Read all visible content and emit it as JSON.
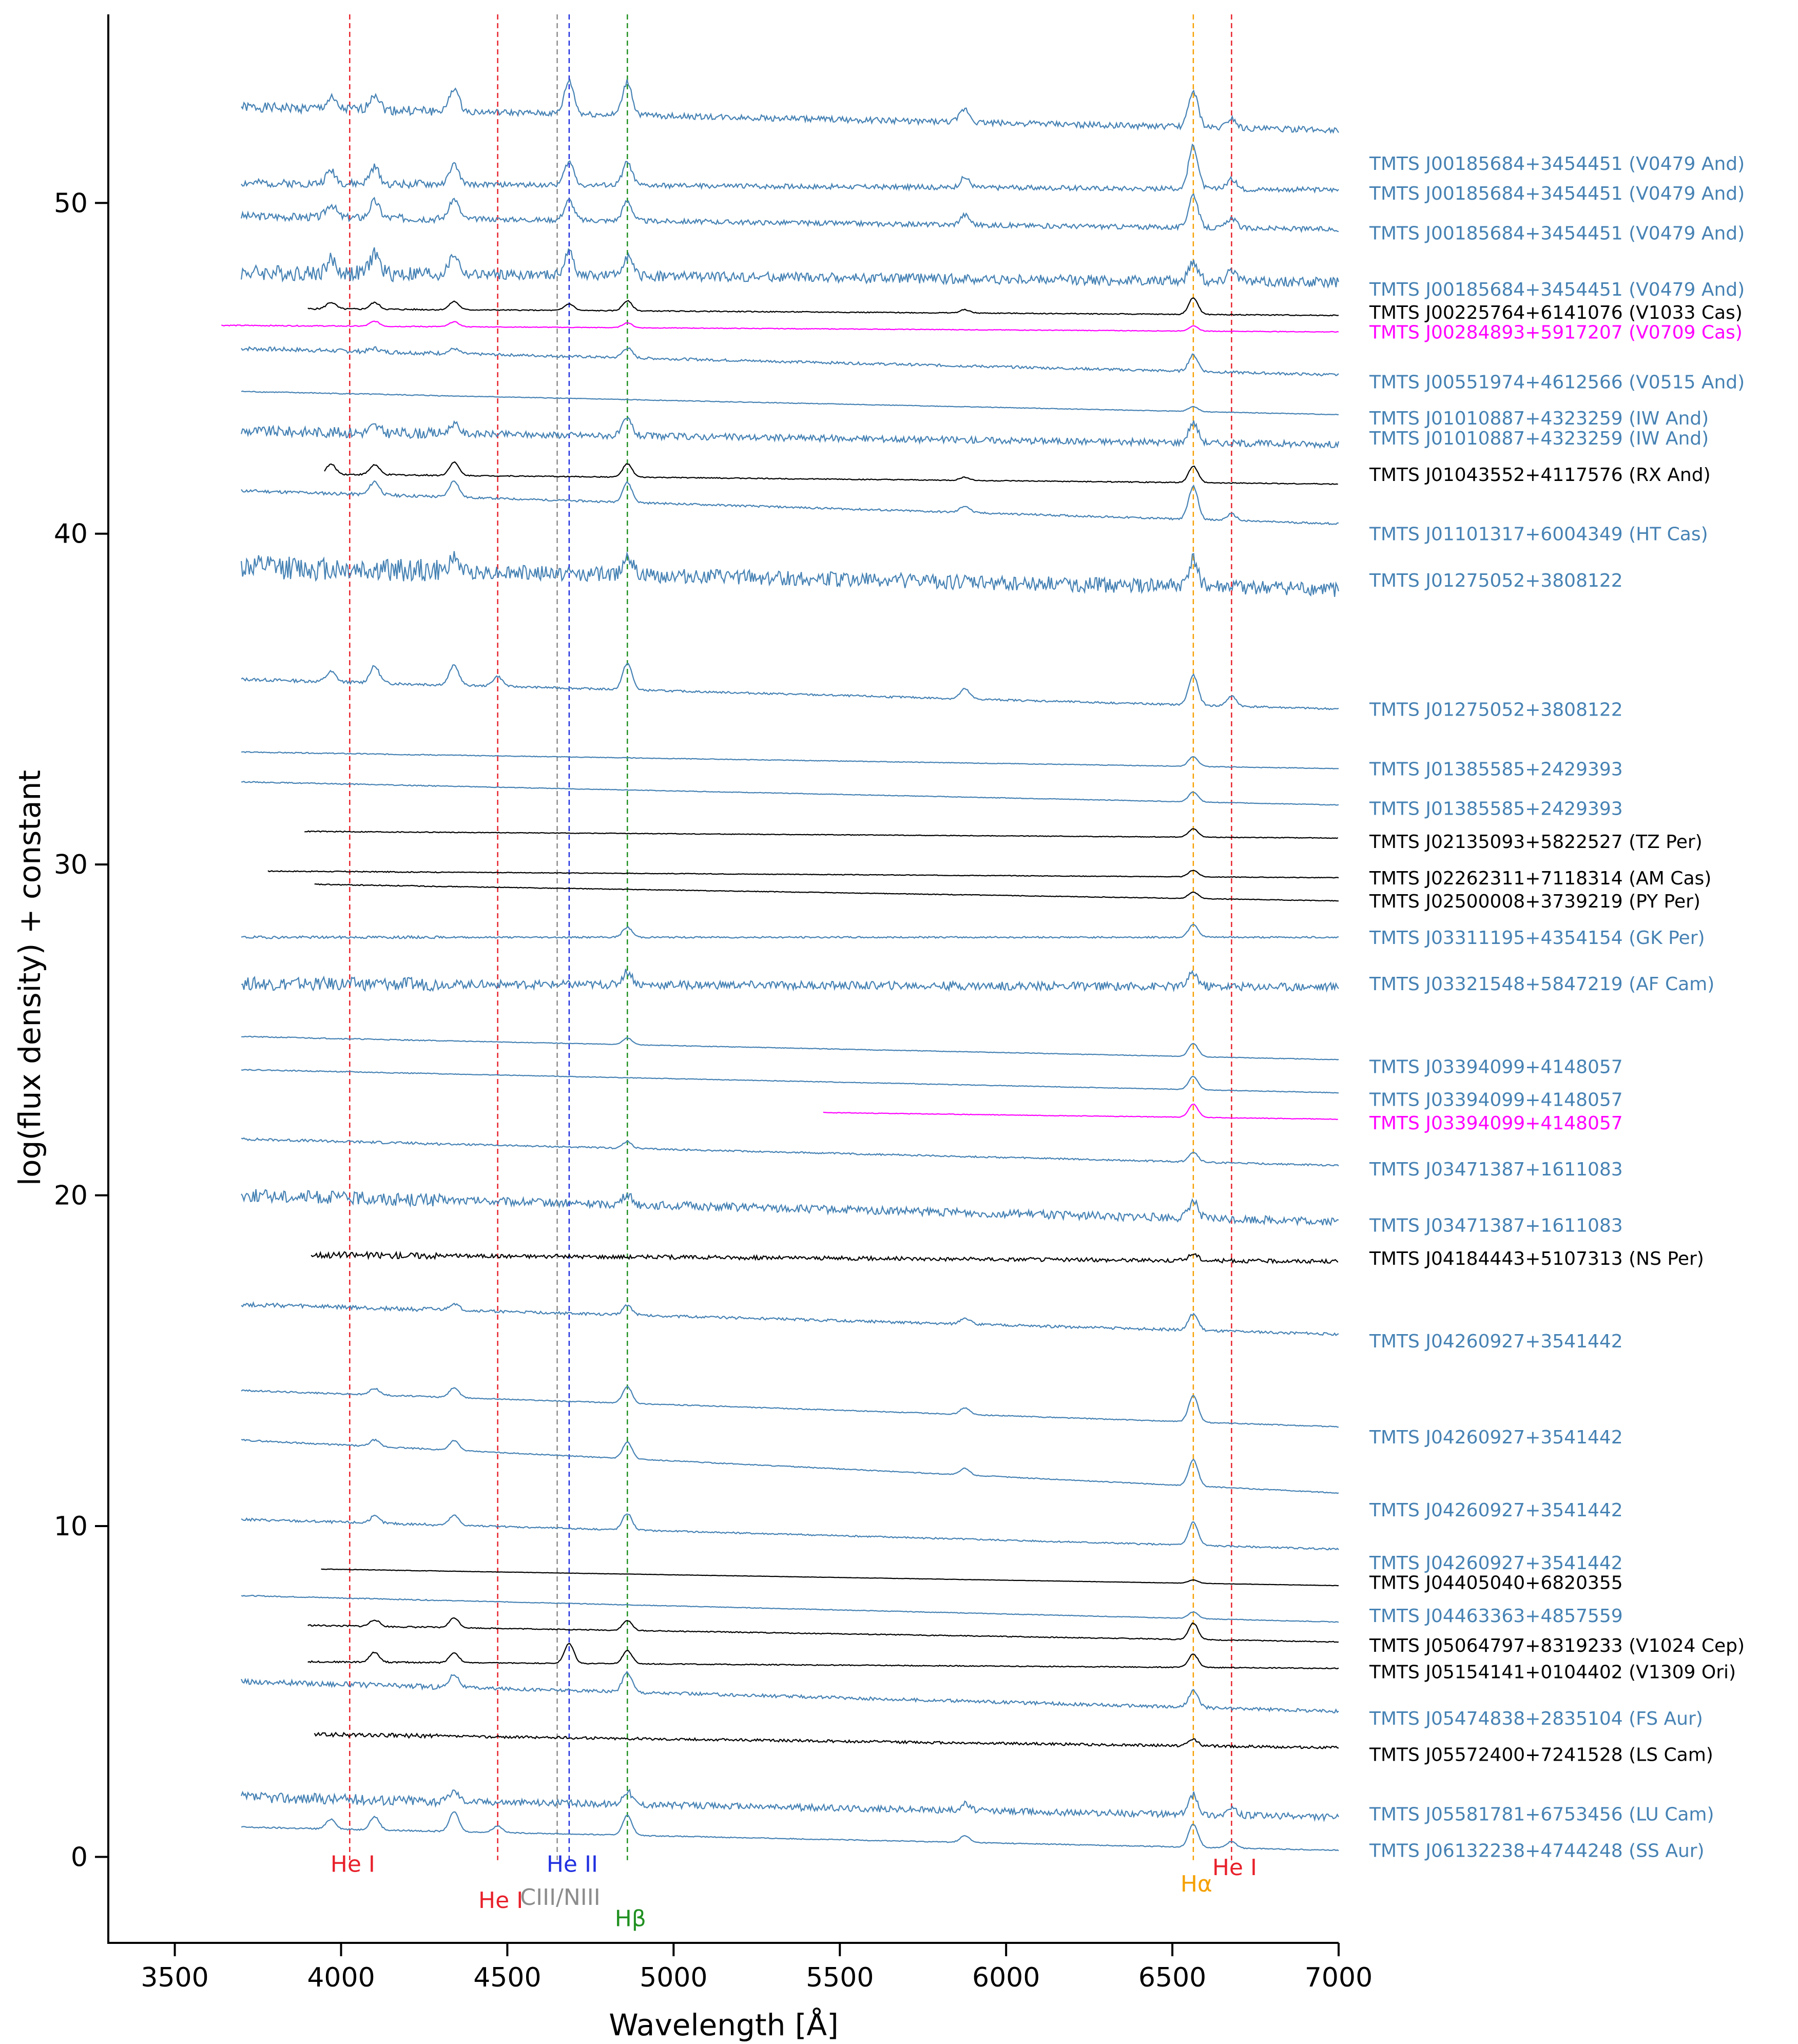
{
  "chart_data": {
    "type": "line",
    "title": "",
    "xlabel": "Wavelength [Å]",
    "ylabel": "log(flux density) + constant",
    "xlim": [
      3300,
      7000
    ],
    "ylim": [
      -2.6,
      55.7
    ],
    "xticks": [
      3500,
      4000,
      4500,
      5000,
      5500,
      6000,
      6500,
      7000
    ],
    "yticks": [
      0,
      10,
      20,
      30,
      40,
      50
    ],
    "grid": false,
    "lines": [
      {
        "name": "He I",
        "wavelength": 4026,
        "color": "#e8202a",
        "label_y": -0.2
      },
      {
        "name": "He I",
        "wavelength": 4471,
        "color": "#e8202a",
        "label_y": -1.3
      },
      {
        "name": "CIII/NIII",
        "wavelength": 4650,
        "color": "#8c8c8c",
        "label_y": -1.2
      },
      {
        "name": "He II",
        "wavelength": 4686,
        "color": "#2030e0",
        "label_y": -0.2
      },
      {
        "name": "Hβ",
        "wavelength": 4861,
        "color": "#209020",
        "label_y": -1.85
      },
      {
        "name": "Hα",
        "wavelength": 6563,
        "color": "#f5a000",
        "label_y": -0.8
      },
      {
        "name": "He I",
        "wavelength": 6678,
        "color": "#e8202a",
        "label_y": -0.3
      }
    ],
    "series": [
      {
        "name": "TMTS J00185684+3454451 (V0479 And)",
        "color": "#4682b4",
        "x_start": 3700,
        "x_end": 7000,
        "y_start": 52.9,
        "y_end": 52.2,
        "noise": 0.18,
        "label_y": 51.2,
        "lines": [
          [
            3970,
            0.3
          ],
          [
            4101,
            0.5
          ],
          [
            4340,
            0.7
          ],
          [
            4686,
            1.0
          ],
          [
            4861,
            1.0
          ],
          [
            5876,
            0.4
          ],
          [
            6563,
            1.1
          ],
          [
            6678,
            0.3
          ]
        ]
      },
      {
        "name": "TMTS J00185684+3454451 (V0479 And)",
        "color": "#4682b4",
        "x_start": 3700,
        "x_end": 7000,
        "y_start": 50.6,
        "y_end": 50.4,
        "noise": 0.15,
        "label_y": 50.3,
        "lines": [
          [
            3970,
            0.4
          ],
          [
            4101,
            0.5
          ],
          [
            4340,
            0.6
          ],
          [
            4686,
            0.7
          ],
          [
            4861,
            0.7
          ],
          [
            5876,
            0.3
          ],
          [
            6563,
            1.3
          ],
          [
            6678,
            0.3
          ]
        ]
      },
      {
        "name": "TMTS J00185684+3454451 (V0479 And)",
        "color": "#4682b4",
        "x_start": 3700,
        "x_end": 7000,
        "y_start": 49.6,
        "y_end": 49.2,
        "noise": 0.15,
        "label_y": 49.1,
        "lines": [
          [
            3970,
            0.4
          ],
          [
            4101,
            0.5
          ],
          [
            4340,
            0.6
          ],
          [
            4686,
            0.6
          ],
          [
            4861,
            0.6
          ],
          [
            5876,
            0.3
          ],
          [
            6563,
            1.0
          ],
          [
            6678,
            0.3
          ]
        ]
      },
      {
        "name": "TMTS J00185684+3454451 (V0479 And)",
        "color": "#4682b4",
        "x_start": 3700,
        "x_end": 7000,
        "y_start": 47.9,
        "y_end": 47.6,
        "noise": 0.3,
        "label_y": 47.4,
        "lines": [
          [
            3970,
            0.4
          ],
          [
            4101,
            0.6
          ],
          [
            4340,
            0.6
          ],
          [
            4686,
            0.7
          ],
          [
            4861,
            0.6
          ],
          [
            6563,
            0.6
          ],
          [
            6678,
            0.4
          ]
        ]
      },
      {
        "name": "TMTS J00225764+6141076 (V1033 Cas)",
        "color": "#000000",
        "x_start": 3900,
        "x_end": 7000,
        "y_start": 46.8,
        "y_end": 46.6,
        "noise": 0.03,
        "label_y": 46.7,
        "lines": [
          [
            3970,
            0.2
          ],
          [
            4101,
            0.2
          ],
          [
            4340,
            0.25
          ],
          [
            4686,
            0.2
          ],
          [
            4861,
            0.3
          ],
          [
            5876,
            0.1
          ],
          [
            6563,
            0.5
          ]
        ]
      },
      {
        "name": "TMTS J00284893+5917207 (V0709 Cas)",
        "color": "#ff00ff",
        "x_start": 3640,
        "x_end": 7000,
        "y_start": 46.3,
        "y_end": 46.1,
        "noise": 0.02,
        "label_y": 46.1,
        "lines": [
          [
            4101,
            0.15
          ],
          [
            4340,
            0.15
          ],
          [
            4861,
            0.15
          ],
          [
            6563,
            0.15
          ]
        ]
      },
      {
        "name": "TMTS J00551974+4612566 (V0515 And)",
        "color": "#4682b4",
        "x_start": 3700,
        "x_end": 7000,
        "y_start": 45.6,
        "y_end": 44.8,
        "noise": 0.08,
        "label_y": 44.6,
        "lines": [
          [
            4101,
            0.1
          ],
          [
            4340,
            0.15
          ],
          [
            4861,
            0.3
          ],
          [
            6563,
            0.5
          ]
        ]
      },
      {
        "name": "TMTS J01010887+4323259 (IW And)",
        "color": "#4682b4",
        "x_start": 3700,
        "x_end": 7000,
        "y_start": 44.3,
        "y_end": 43.6,
        "noise": 0.02,
        "label_y": 43.5,
        "lines": [
          [
            6563,
            0.15
          ]
        ]
      },
      {
        "name": "TMTS J01010887+4323259 (IW And)",
        "color": "#4682b4",
        "x_start": 3700,
        "x_end": 7000,
        "y_start": 43.1,
        "y_end": 42.7,
        "noise": 0.2,
        "label_y": 42.9,
        "lines": [
          [
            4101,
            0.2
          ],
          [
            4340,
            0.3
          ],
          [
            4861,
            0.5
          ],
          [
            6563,
            0.6
          ]
        ]
      },
      {
        "name": "TMTS J01043552+4117576 (RX And)",
        "color": "#000000",
        "x_start": 3950,
        "x_end": 7000,
        "y_start": 41.8,
        "y_end": 41.5,
        "noise": 0.03,
        "label_y": 41.8,
        "lines": [
          [
            3970,
            0.3
          ],
          [
            4101,
            0.3
          ],
          [
            4340,
            0.4
          ],
          [
            4861,
            0.4
          ],
          [
            5876,
            0.1
          ],
          [
            6563,
            0.5
          ]
        ]
      },
      {
        "name": "TMTS J01101317+6004349 (HT Cas)",
        "color": "#4682b4",
        "x_start": 3700,
        "x_end": 7000,
        "y_start": 41.3,
        "y_end": 40.3,
        "noise": 0.06,
        "label_y": 40.0,
        "lines": [
          [
            4101,
            0.4
          ],
          [
            4340,
            0.5
          ],
          [
            4861,
            0.6
          ],
          [
            5876,
            0.2
          ],
          [
            6563,
            1.0
          ],
          [
            6678,
            0.2
          ]
        ]
      },
      {
        "name": "TMTS J01275052+3808122",
        "color": "#4682b4",
        "x_start": 3700,
        "x_end": 7000,
        "y_start": 39.0,
        "y_end": 38.3,
        "noise": 0.45,
        "label_y": 38.6,
        "lines": [
          [
            4340,
            0.4
          ],
          [
            4861,
            0.6
          ],
          [
            6563,
            0.8
          ]
        ]
      },
      {
        "name": "TMTS J01275052+3808122",
        "color": "#4682b4",
        "x_start": 3700,
        "x_end": 7000,
        "y_start": 35.6,
        "y_end": 34.7,
        "noise": 0.06,
        "label_y": 34.7,
        "lines": [
          [
            3970,
            0.3
          ],
          [
            4101,
            0.5
          ],
          [
            4340,
            0.6
          ],
          [
            4471,
            0.3
          ],
          [
            4861,
            0.8
          ],
          [
            5876,
            0.3
          ],
          [
            6563,
            0.9
          ],
          [
            6678,
            0.3
          ]
        ]
      },
      {
        "name": "TMTS J01385585+2429393",
        "color": "#4682b4",
        "x_start": 3700,
        "x_end": 7000,
        "y_start": 33.4,
        "y_end": 32.9,
        "noise": 0.02,
        "label_y": 32.9,
        "lines": [
          [
            6563,
            0.3
          ]
        ]
      },
      {
        "name": "TMTS J01385585+2429393",
        "color": "#4682b4",
        "x_start": 3700,
        "x_end": 7000,
        "y_start": 32.5,
        "y_end": 31.8,
        "noise": 0.02,
        "label_y": 31.7,
        "lines": [
          [
            6563,
            0.3
          ]
        ]
      },
      {
        "name": "TMTS J02135093+5822527 (TZ Per)",
        "color": "#000000",
        "x_start": 3890,
        "x_end": 7000,
        "y_start": 31.0,
        "y_end": 30.8,
        "noise": 0.02,
        "label_y": 30.7,
        "lines": [
          [
            6563,
            0.25
          ]
        ]
      },
      {
        "name": "TMTS J02262311+7118314 (AM Cas)",
        "color": "#000000",
        "x_start": 3780,
        "x_end": 7000,
        "y_start": 29.8,
        "y_end": 29.6,
        "noise": 0.02,
        "label_y": 29.6,
        "lines": [
          [
            6563,
            0.2
          ]
        ]
      },
      {
        "name": "TMTS J02500008+3739219 (PY Per)",
        "color": "#000000",
        "x_start": 3920,
        "x_end": 7000,
        "y_start": 29.4,
        "y_end": 28.9,
        "noise": 0.02,
        "label_y": 28.9,
        "lines": [
          [
            6563,
            0.2
          ]
        ]
      },
      {
        "name": "TMTS J03311195+4354154 (GK Per)",
        "color": "#4682b4",
        "x_start": 3700,
        "x_end": 7000,
        "y_start": 27.8,
        "y_end": 27.8,
        "noise": 0.05,
        "label_y": 27.8,
        "lines": [
          [
            4861,
            0.3
          ],
          [
            6563,
            0.4
          ]
        ]
      },
      {
        "name": "TMTS J03321548+5847219 (AF Cam)",
        "color": "#4682b4",
        "x_start": 3700,
        "x_end": 7000,
        "y_start": 26.4,
        "y_end": 26.3,
        "noise": 0.25,
        "label_y": 26.4,
        "lines": [
          [
            4861,
            0.4
          ],
          [
            6563,
            0.4
          ]
        ]
      },
      {
        "name": "TMTS J03394099+4148057",
        "color": "#4682b4",
        "x_start": 3700,
        "x_end": 7000,
        "y_start": 24.8,
        "y_end": 24.1,
        "noise": 0.02,
        "label_y": 23.9,
        "lines": [
          [
            4861,
            0.2
          ],
          [
            6563,
            0.4
          ]
        ]
      },
      {
        "name": "TMTS J03394099+4148057",
        "color": "#4682b4",
        "x_start": 3700,
        "x_end": 7000,
        "y_start": 23.8,
        "y_end": 23.1,
        "noise": 0.02,
        "label_y": 22.9,
        "lines": [
          [
            6563,
            0.4
          ]
        ]
      },
      {
        "name": "TMTS J03394099+4148057",
        "color": "#ff00ff",
        "x_start": 5450,
        "x_end": 7000,
        "y_start": 22.5,
        "y_end": 22.3,
        "noise": 0.02,
        "label_y": 22.2,
        "lines": [
          [
            6563,
            0.4
          ]
        ]
      },
      {
        "name": "TMTS J03471387+1611083",
        "color": "#4682b4",
        "x_start": 3700,
        "x_end": 7000,
        "y_start": 21.7,
        "y_end": 20.9,
        "noise": 0.05,
        "label_y": 20.8,
        "lines": [
          [
            4861,
            0.2
          ],
          [
            6563,
            0.3
          ]
        ]
      },
      {
        "name": "TMTS J03471387+1611083",
        "color": "#4682b4",
        "x_start": 3700,
        "x_end": 7000,
        "y_start": 20.0,
        "y_end": 19.2,
        "noise": 0.25,
        "label_y": 19.1,
        "lines": [
          [
            4861,
            0.3
          ],
          [
            6563,
            0.5
          ]
        ]
      },
      {
        "name": "TMTS J04184443+5107313 (NS Per)",
        "color": "#000000",
        "x_start": 3910,
        "x_end": 7000,
        "y_start": 18.2,
        "y_end": 18.0,
        "noise": 0.12,
        "label_y": 18.1,
        "lines": [
          [
            6563,
            0.2
          ]
        ]
      },
      {
        "name": "TMTS J04260927+3541442",
        "color": "#4682b4",
        "x_start": 3700,
        "x_end": 7000,
        "y_start": 16.7,
        "y_end": 15.8,
        "noise": 0.08,
        "label_y": 15.6,
        "lines": [
          [
            4340,
            0.2
          ],
          [
            4861,
            0.3
          ],
          [
            5876,
            0.2
          ],
          [
            6563,
            0.5
          ]
        ]
      },
      {
        "name": "TMTS J04260927+3541442",
        "color": "#4682b4",
        "x_start": 3700,
        "x_end": 7000,
        "y_start": 14.1,
        "y_end": 13.0,
        "noise": 0.03,
        "label_y": 12.7,
        "lines": [
          [
            4101,
            0.2
          ],
          [
            4340,
            0.3
          ],
          [
            4861,
            0.5
          ],
          [
            5876,
            0.2
          ],
          [
            6563,
            0.8
          ]
        ]
      },
      {
        "name": "TMTS J04260927+3541442",
        "color": "#4682b4",
        "x_start": 3700,
        "x_end": 7000,
        "y_start": 12.6,
        "y_end": 11.0,
        "noise": 0.03,
        "label_y": 10.5,
        "lines": [
          [
            4101,
            0.2
          ],
          [
            4340,
            0.3
          ],
          [
            4861,
            0.5
          ],
          [
            5876,
            0.2
          ],
          [
            6563,
            0.8
          ]
        ]
      },
      {
        "name": "TMTS J04260927+3541442",
        "color": "#4682b4",
        "x_start": 3700,
        "x_end": 7000,
        "y_start": 10.2,
        "y_end": 9.3,
        "noise": 0.05,
        "label_y": 8.9,
        "lines": [
          [
            4101,
            0.2
          ],
          [
            4340,
            0.3
          ],
          [
            4861,
            0.5
          ],
          [
            6563,
            0.7
          ]
        ]
      },
      {
        "name": "TMTS J04405040+6820355",
        "color": "#000000",
        "x_start": 3940,
        "x_end": 7000,
        "y_start": 8.7,
        "y_end": 8.2,
        "noise": 0.01,
        "label_y": 8.3,
        "lines": [
          [
            6563,
            0.1
          ]
        ]
      },
      {
        "name": "TMTS J04463363+4857559",
        "color": "#4682b4",
        "x_start": 3700,
        "x_end": 7000,
        "y_start": 7.9,
        "y_end": 7.1,
        "noise": 0.02,
        "label_y": 7.3,
        "lines": [
          [
            6563,
            0.2
          ]
        ]
      },
      {
        "name": "TMTS J05064797+8319233 (V1024 Cep)",
        "color": "#000000",
        "x_start": 3900,
        "x_end": 7000,
        "y_start": 7.0,
        "y_end": 6.5,
        "noise": 0.03,
        "label_y": 6.4,
        "lines": [
          [
            4101,
            0.2
          ],
          [
            4340,
            0.3
          ],
          [
            4861,
            0.3
          ],
          [
            6563,
            0.5
          ]
        ]
      },
      {
        "name": "TMTS J05154141+0104402 (V1309 Ori)",
        "color": "#000000",
        "x_start": 3900,
        "x_end": 7000,
        "y_start": 5.9,
        "y_end": 5.7,
        "noise": 0.03,
        "label_y": 5.6,
        "lines": [
          [
            4101,
            0.3
          ],
          [
            4340,
            0.3
          ],
          [
            4686,
            0.6
          ],
          [
            4861,
            0.4
          ],
          [
            6563,
            0.4
          ]
        ]
      },
      {
        "name": "TMTS J05474838+2835104 (FS Aur)",
        "color": "#4682b4",
        "x_start": 3700,
        "x_end": 7000,
        "y_start": 5.3,
        "y_end": 4.4,
        "noise": 0.1,
        "label_y": 4.2,
        "lines": [
          [
            4340,
            0.4
          ],
          [
            4861,
            0.6
          ],
          [
            6563,
            0.5
          ]
        ]
      },
      {
        "name": "TMTS J05572400+7241528 (LS Cam)",
        "color": "#000000",
        "x_start": 3920,
        "x_end": 7000,
        "y_start": 3.7,
        "y_end": 3.3,
        "noise": 0.08,
        "label_y": 3.1,
        "lines": [
          [
            6563,
            0.2
          ]
        ]
      },
      {
        "name": "TMTS J05581781+6753456 (LU Cam)",
        "color": "#4682b4",
        "x_start": 3700,
        "x_end": 7000,
        "y_start": 1.8,
        "y_end": 1.2,
        "noise": 0.2,
        "label_y": 1.3,
        "lines": [
          [
            4340,
            0.3
          ],
          [
            4861,
            0.4
          ],
          [
            5876,
            0.2
          ],
          [
            6563,
            0.6
          ],
          [
            6678,
            0.2
          ]
        ]
      },
      {
        "name": "TMTS J06132238+4744248 (SS Aur)",
        "color": "#4682b4",
        "x_start": 3700,
        "x_end": 7000,
        "y_start": 0.9,
        "y_end": 0.2,
        "noise": 0.03,
        "label_y": 0.2,
        "lines": [
          [
            3970,
            0.3
          ],
          [
            4101,
            0.4
          ],
          [
            4340,
            0.6
          ],
          [
            4471,
            0.2
          ],
          [
            4861,
            0.6
          ],
          [
            5876,
            0.2
          ],
          [
            6563,
            0.7
          ],
          [
            6678,
            0.2
          ]
        ]
      }
    ]
  }
}
